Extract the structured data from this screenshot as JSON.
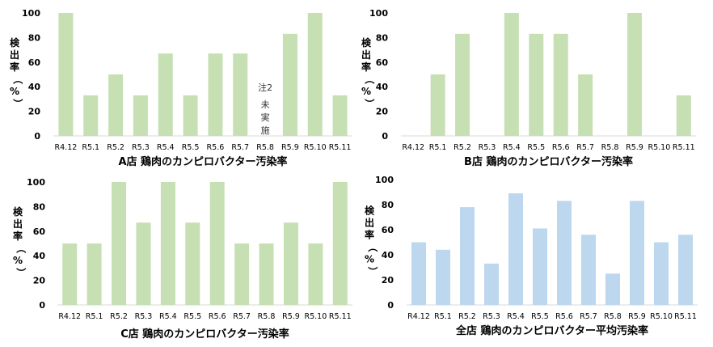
{
  "chart_data": [
    {
      "type": "bar",
      "title": "A店 鶏肉のカンピロバクター汚染率",
      "ylabel": "検出率（%）",
      "categories": [
        "R4.12",
        "R5.1",
        "R5.2",
        "R5.3",
        "R5.4",
        "R5.5",
        "R5.6",
        "R5.7",
        "R5.8",
        "R5.9",
        "R5.10",
        "R5.11"
      ],
      "values": [
        100,
        33,
        50,
        33,
        67,
        33,
        67,
        67,
        null,
        83,
        100,
        33
      ],
      "ylim": [
        0,
        100
      ],
      "yticks": [
        0,
        20,
        40,
        60,
        80,
        100
      ],
      "bar_color": "#c6e0b4",
      "annotation": {
        "category": "R5.8",
        "note": "注2",
        "text": [
          "未",
          "実",
          "施"
        ]
      }
    },
    {
      "type": "bar",
      "title": "B店 鶏肉のカンピロバクター汚染率",
      "ylabel": "検出率（%）",
      "categories": [
        "R4.12",
        "R5.1",
        "R5.2",
        "R5.3",
        "R5.4",
        "R5.5",
        "R5.6",
        "R5.7",
        "R5.8",
        "R5.9",
        "R5.10",
        "R5.11"
      ],
      "values": [
        0,
        50,
        83,
        0,
        100,
        83,
        83,
        50,
        0,
        100,
        0,
        33
      ],
      "ylim": [
        0,
        100
      ],
      "yticks": [
        0,
        20,
        40,
        60,
        80,
        100
      ],
      "bar_color": "#c6e0b4"
    },
    {
      "type": "bar",
      "title": "C店 鶏肉のカンピロバクター汚染率",
      "ylabel": "検出率（%）",
      "categories": [
        "R4.12",
        "R5.1",
        "R5.2",
        "R5.3",
        "R5.4",
        "R5.5",
        "R5.6",
        "R5.7",
        "R5.8",
        "R5.9",
        "R5.10",
        "R5.11"
      ],
      "values": [
        50,
        50,
        100,
        67,
        100,
        67,
        100,
        50,
        50,
        67,
        50,
        100
      ],
      "ylim": [
        0,
        100
      ],
      "yticks": [
        0,
        20,
        40,
        60,
        80,
        100
      ],
      "bar_color": "#c6e0b4"
    },
    {
      "type": "bar",
      "title": "全店 鶏肉のカンピロバクター平均汚染率",
      "ylabel": "検出率（%）",
      "categories": [
        "R4.12",
        "R5.1",
        "R5.2",
        "R5.3",
        "R5.4",
        "R5.5",
        "R5.6",
        "R5.7",
        "R5.8",
        "R5.9",
        "R5.10",
        "R5.11"
      ],
      "values": [
        50,
        44,
        78,
        33,
        89,
        61,
        83,
        56,
        25,
        83,
        50,
        56
      ],
      "ylim": [
        0,
        100
      ],
      "yticks": [
        0,
        20,
        40,
        60,
        80,
        100
      ],
      "bar_color": "#bdd7ee"
    }
  ]
}
